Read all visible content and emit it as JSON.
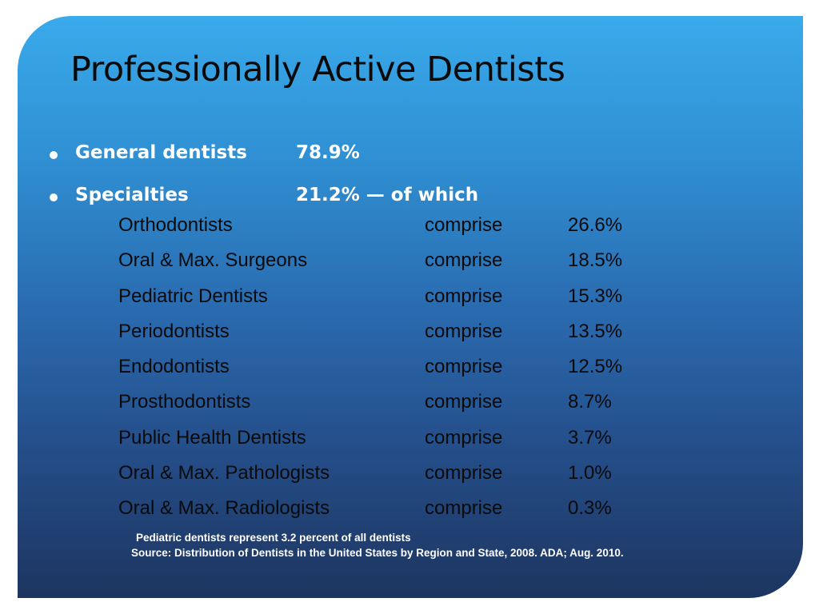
{
  "slide": {
    "title": "Professionally Active Dentists",
    "bullets": [
      {
        "label": "General dentists",
        "value": "78.9%"
      },
      {
        "label": "Specialties",
        "value": "21.2% — of which"
      }
    ],
    "specialties": [
      {
        "name": "Orthodontists",
        "verb": "comprise",
        "percent": "26.6%"
      },
      {
        "name": "Oral & Max. Surgeons",
        "verb": "comprise",
        "percent": "18.5%"
      },
      {
        "name": "Pediatric Dentists",
        "verb": "comprise",
        "percent": "15.3%"
      },
      {
        "name": "Periodontists",
        "verb": "comprise",
        "percent": "13.5%"
      },
      {
        "name": "Endodontists",
        "verb": "comprise",
        "percent": "12.5%"
      },
      {
        "name": "Prosthodontists",
        "verb": "comprise",
        "percent": "8.7%"
      },
      {
        "name": "Public Health Dentists",
        "verb": "comprise",
        "percent": "3.7%"
      },
      {
        "name": "Oral & Max. Pathologists",
        "verb": "comprise",
        "percent": "1.0%"
      },
      {
        "name": "Oral & Max. Radiologists",
        "verb": "comprise",
        "percent": "0.3%"
      }
    ],
    "note": "Pediatric dentists represent 3.2 percent of all dentists",
    "source": "Source:  Distribution of Dentists in the United States by Region and State, 2008.  ADA; Aug. 2010."
  },
  "colors": {
    "gradient_top": "#39aaeb",
    "gradient_bottom": "#1d3560",
    "title_text": "#0a0a0a",
    "bullet_text": "#ffffff"
  }
}
